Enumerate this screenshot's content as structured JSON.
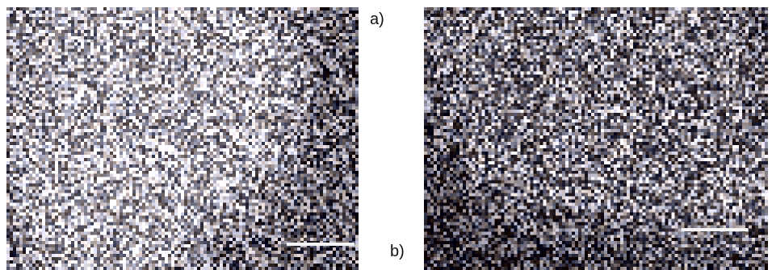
{
  "figure": {
    "panels": [
      {
        "label": "a)",
        "image": "micrograph-a",
        "scale_bar_color": "#f4f4f4",
        "tone": "bright"
      },
      {
        "label": "b)",
        "image": "micrograph-b",
        "scale_bar_color": "#f4f4f4",
        "tone": "dark"
      }
    ]
  }
}
